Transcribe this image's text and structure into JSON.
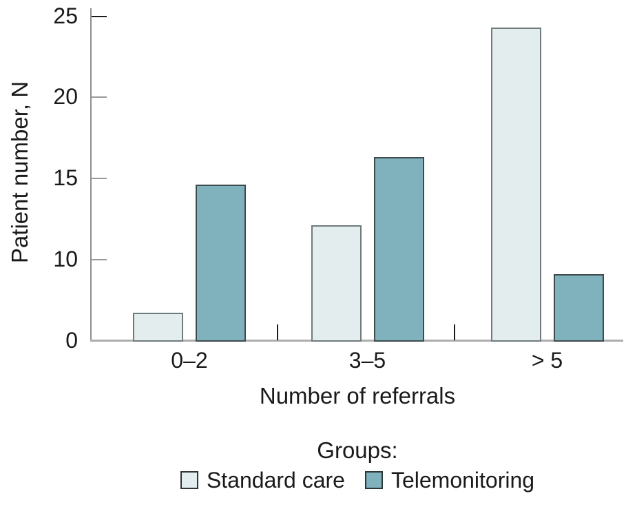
{
  "chart_data": {
    "type": "bar",
    "title": "",
    "xlabel": "Number of referrals",
    "ylabel": "Patient number, N",
    "legend_title": "Groups:",
    "legend_position": "bottom",
    "grid": false,
    "categories": [
      "0–2",
      "3–5",
      "> 5"
    ],
    "series": [
      {
        "name": "Standard care",
        "color": "#e4edee",
        "border": "#6e7a7d",
        "values": [
          3.4,
          12.1,
          24.3
        ]
      },
      {
        "name": "Telemonitoring",
        "color": "#7fb2bc",
        "border": "#3f4a4d",
        "values": [
          14.6,
          16.3,
          8.2
        ]
      }
    ],
    "y_ticks": [
      0,
      10,
      15,
      20,
      25
    ],
    "ylim": [
      0,
      25.5
    ],
    "axis_note": "y tick labels 0,10,15,20,25 are drawn at equal pixel spacing (interval 0–10 occupies the same height as each 5-unit interval above 10)"
  },
  "colors": {
    "background": "#ffffff",
    "text": "#1a1a1a",
    "y_axis_line": "#8f8f8f",
    "x_axis_line": "#adadad",
    "minor_tick": "#999999",
    "top_tick": "#1a1a1a",
    "category_tick": "#1a1a1a"
  }
}
